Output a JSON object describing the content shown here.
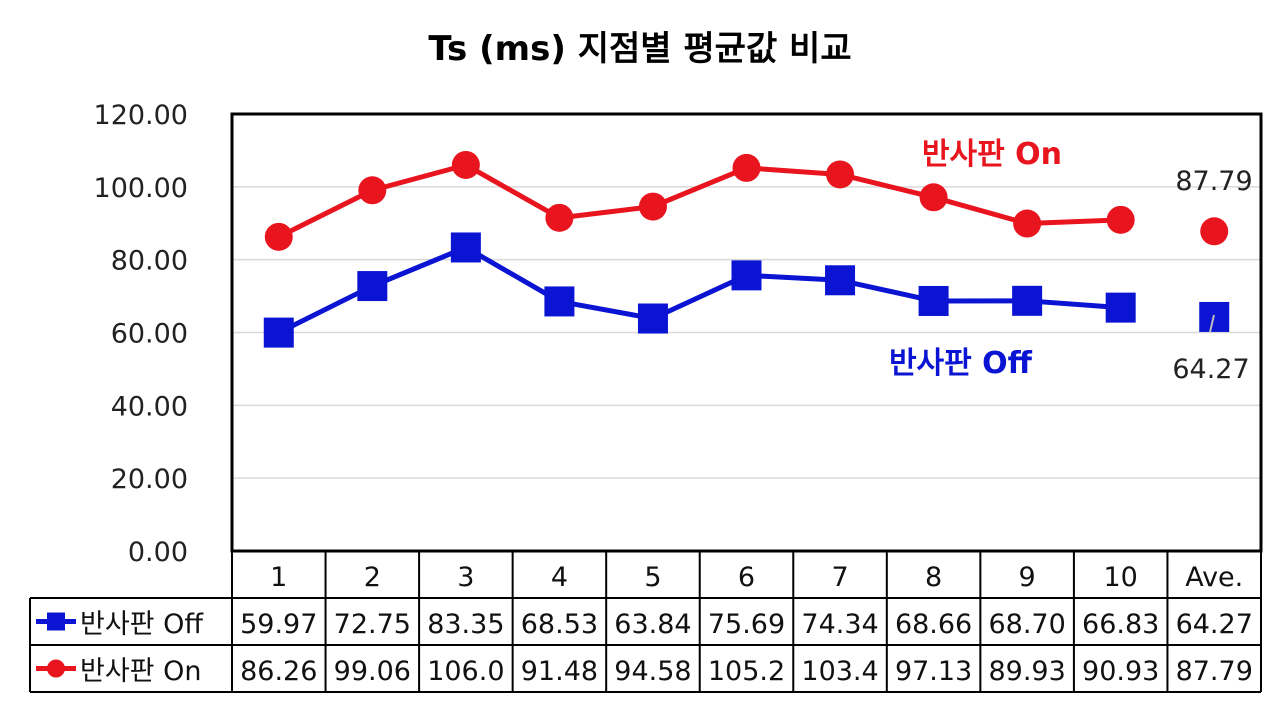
{
  "chart_data": {
    "type": "line",
    "title": "Ts (ms) 지점별 평균값 비교",
    "categories": [
      "1",
      "2",
      "3",
      "4",
      "5",
      "6",
      "7",
      "8",
      "9",
      "10",
      "Ave."
    ],
    "ylim": [
      0,
      120
    ],
    "yticks": [
      "0.00",
      "20.00",
      "40.00",
      "60.00",
      "80.00",
      "100.00",
      "120.00"
    ],
    "grid": true,
    "legend": "data table",
    "series": [
      {
        "name": "반사판 Off",
        "chart_label": "반사판 Off",
        "color": "#0a14d2",
        "marker": "square",
        "values": [
          59.97,
          72.75,
          83.35,
          68.53,
          63.84,
          75.69,
          74.34,
          68.66,
          68.7,
          66.83,
          64.27
        ],
        "table_values": [
          "59.97",
          "72.75",
          "83.35",
          "68.53",
          "63.84",
          "75.69",
          "74.34",
          "68.66",
          "68.70",
          "66.83",
          "64.27"
        ]
      },
      {
        "name": "반사판 On",
        "chart_label": "반사판 On",
        "color": "#e8141e",
        "marker": "circle",
        "values": [
          86.26,
          99.06,
          106.0,
          91.48,
          94.58,
          105.2,
          103.4,
          97.13,
          89.93,
          90.93,
          87.79
        ],
        "table_values": [
          "86.26",
          "99.06",
          "106.0",
          "91.48",
          "94.58",
          "105.2",
          "103.4",
          "97.13",
          "89.93",
          "90.93",
          "87.79"
        ]
      }
    ],
    "annotations": {
      "avg_on": "87.79",
      "avg_off": "64.27"
    }
  }
}
